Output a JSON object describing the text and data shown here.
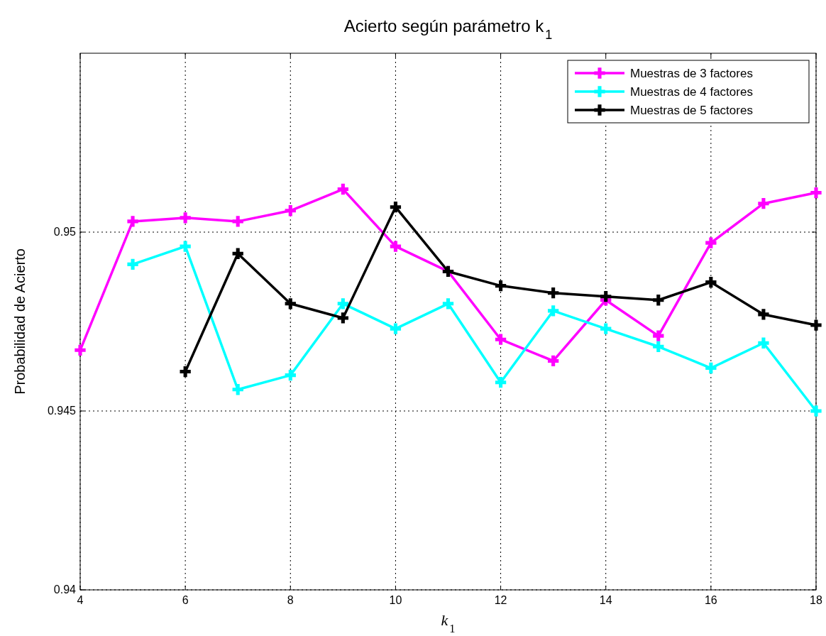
{
  "chart_data": {
    "type": "line",
    "title": "Acierto según parámetro k$_{1}$",
    "xlabel": "k$_{1}$",
    "ylabel": "Probabilidad de Acierto",
    "xlim": [
      4,
      18
    ],
    "xticks": [
      4,
      6,
      8,
      10,
      12,
      14,
      16,
      18
    ],
    "ylim": [
      0.94,
      0.955
    ],
    "yticks": [
      0.94,
      0.945,
      0.95
    ],
    "grid": true,
    "legend": "top right",
    "marker": "cross",
    "line_style": "solid",
    "series": [
      {
        "name": "Muestras de 3 factores",
        "color": "#ff00ff",
        "x": [
          4,
          5,
          6,
          7,
          8,
          9,
          10,
          11,
          12,
          13,
          14,
          15,
          16,
          17,
          18
        ],
        "values": [
          0.9467,
          0.9503,
          0.9504,
          0.9503,
          0.9506,
          0.9512,
          0.9496,
          0.9489,
          0.947,
          0.9464,
          0.9481,
          0.9471,
          0.9497,
          0.9508,
          0.9511
        ]
      },
      {
        "name": "Muestras de 4 factores",
        "color": "#00ffff",
        "x": [
          5,
          6,
          7,
          8,
          9,
          10,
          11,
          12,
          13,
          14,
          15,
          16,
          17,
          18
        ],
        "values": [
          0.9491,
          0.9496,
          0.9456,
          0.946,
          0.948,
          0.9473,
          0.948,
          0.9458,
          0.9478,
          0.9473,
          0.9468,
          0.9462,
          0.9469,
          0.945
        ]
      },
      {
        "name": "Muestras de 5 factores",
        "color": "#000000",
        "x": [
          6,
          7,
          8,
          9,
          10,
          11,
          12,
          13,
          14,
          15,
          16,
          17,
          18
        ],
        "values": [
          0.9461,
          0.9494,
          0.948,
          0.9476,
          0.9507,
          0.9489,
          0.9485,
          0.9483,
          0.9482,
          0.9481,
          0.9486,
          0.9477,
          0.9474
        ]
      }
    ]
  }
}
